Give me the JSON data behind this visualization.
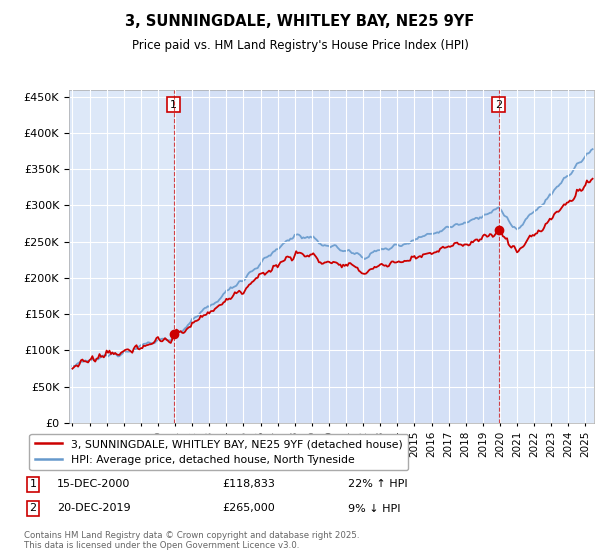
{
  "title": "3, SUNNINGDALE, WHITLEY BAY, NE25 9YF",
  "subtitle": "Price paid vs. HM Land Registry's House Price Index (HPI)",
  "bg_color": "#dde8f8",
  "shade_color": "#ccdaf5",
  "ylim": [
    0,
    460000
  ],
  "yticks": [
    0,
    50000,
    100000,
    150000,
    200000,
    250000,
    300000,
    350000,
    400000,
    450000
  ],
  "sale1_date": "15-DEC-2000",
  "sale1_price": 118833,
  "sale1_hpi": "22% ↑ HPI",
  "sale2_date": "20-DEC-2019",
  "sale2_price": 265000,
  "sale2_hpi": "9% ↓ HPI",
  "legend_label1": "3, SUNNINGDALE, WHITLEY BAY, NE25 9YF (detached house)",
  "legend_label2": "HPI: Average price, detached house, North Tyneside",
  "footer": "Contains HM Land Registry data © Crown copyright and database right 2025.\nThis data is licensed under the Open Government Licence v3.0.",
  "red_color": "#cc0000",
  "blue_color": "#6699cc",
  "year_start": 1995,
  "year_end": 2025
}
